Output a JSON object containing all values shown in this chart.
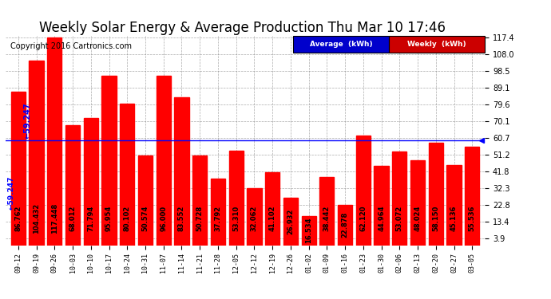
{
  "title": "Weekly Solar Energy & Average Production Thu Mar 10 17:46",
  "copyright": "Copyright 2016 Cartronics.com",
  "categories": [
    "09-12",
    "09-19",
    "09-26",
    "10-03",
    "10-10",
    "10-17",
    "10-24",
    "10-31",
    "11-07",
    "11-14",
    "11-21",
    "11-28",
    "12-05",
    "12-12",
    "12-19",
    "12-26",
    "01-02",
    "01-09",
    "01-16",
    "01-23",
    "01-30",
    "02-06",
    "02-13",
    "02-20",
    "02-27",
    "03-05"
  ],
  "values": [
    86.762,
    104.432,
    117.448,
    68.012,
    71.794,
    95.954,
    80.102,
    50.574,
    96.0,
    83.552,
    50.728,
    37.792,
    53.31,
    32.062,
    41.102,
    26.932,
    16.534,
    38.442,
    22.878,
    62.12,
    44.964,
    53.072,
    48.024,
    58.15,
    45.136,
    55.536
  ],
  "average": 59.247,
  "bar_color": "#ff0000",
  "average_line_color": "#0000ff",
  "background_color": "#ffffff",
  "plot_bg_color": "#ffffff",
  "grid_color": "#888888",
  "yticks": [
    3.9,
    13.4,
    22.8,
    32.3,
    41.8,
    51.2,
    60.7,
    70.1,
    79.6,
    89.1,
    98.5,
    108.0,
    117.4
  ],
  "legend_avg_color": "#0000cc",
  "legend_weekly_color": "#cc0000",
  "title_fontsize": 12,
  "copyright_fontsize": 7,
  "bar_label_fontsize": 6,
  "xtick_fontsize": 6,
  "ytick_fontsize": 7
}
